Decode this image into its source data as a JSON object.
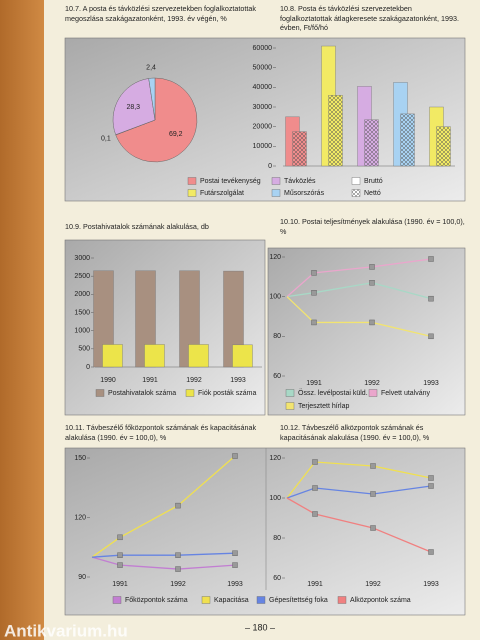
{
  "page_number": "– 180 –",
  "watermark": "Antikvarium.hu",
  "chart_data": [
    {
      "type": "pie",
      "title": "10.7. A posta és távközlési szervezetekben foglalkoztatottak megoszlása szakágazatonként, 1993. év végén, %",
      "categories": [
        "Postai tevékenység",
        "Távközlés",
        "Futárszolgálat",
        "Műsorszórás"
      ],
      "values": [
        69.2,
        28.3,
        0.1,
        2.4
      ],
      "value_labels": [
        "69,2",
        "28,3",
        "0,1",
        "2,4"
      ],
      "colors": [
        "#f08c8c",
        "#d6ace2",
        "#f2ea64",
        "#a8d2f2"
      ]
    },
    {
      "type": "bar",
      "title": "10.8. Posta és távközlési szervezetekben foglalkoztatottak átlagkeresete szakágazatonként, 1993. évben, Ft/fő/hó",
      "categories": [
        null,
        null,
        null,
        null,
        null
      ],
      "category_colors": [
        "#f08c8c",
        "#f2ea64",
        "#d6ace2",
        "#a8d2f2",
        "#f2ea64"
      ],
      "series": [
        {
          "name": "Bruttó",
          "values": [
            25000,
            61000,
            40500,
            42500,
            30000
          ]
        },
        {
          "name": "Nettó",
          "values": [
            17500,
            36000,
            23500,
            26500,
            20000
          ]
        }
      ],
      "ylim": [
        0,
        60000
      ],
      "yticks": [
        0,
        10000,
        20000,
        30000,
        40000,
        50000,
        60000
      ]
    },
    {
      "type": "bar",
      "title": "10.9. Postahivatalok számának alakulása, db",
      "categories": [
        "1990",
        "1991",
        "1992",
        "1993"
      ],
      "series": [
        {
          "name": "Postahivatalok száma",
          "color": "#a89080",
          "values": [
            2650,
            2650,
            2650,
            2640
          ]
        },
        {
          "name": "Fiók posták száma",
          "color": "#ece44a",
          "values": [
            620,
            620,
            620,
            610
          ]
        }
      ],
      "ylim": [
        0,
        3000
      ],
      "yticks": [
        0,
        500,
        1000,
        1500,
        2000,
        2500,
        3000
      ]
    },
    {
      "type": "line",
      "title": "10.10. Postai teljesítmények alakulása (1990. év = 100,0), %",
      "categories": [
        null,
        "1991",
        "1992",
        "1993"
      ],
      "series": [
        {
          "name": "Össz. levélpostai küld.",
          "color": "#a8d8c6",
          "values": [
            100,
            102,
            107,
            99
          ]
        },
        {
          "name": "Felvett utalvány",
          "color": "#eaa6cc",
          "values": [
            100,
            112,
            115,
            119
          ]
        },
        {
          "name": "Terjesztett hírlap",
          "color": "#f2e470",
          "values": [
            100,
            87,
            87,
            80
          ]
        }
      ],
      "ylim": [
        60,
        120
      ],
      "yticks": [
        60,
        80,
        100,
        120
      ]
    },
    {
      "type": "line",
      "title": "10.11. Távbeszélő főközpontok számának és kapacitásának alakulása (1990. év = 100,0), %",
      "categories": [
        null,
        "1991",
        "1992",
        "1993"
      ],
      "series": [
        {
          "color": "#c27ed2",
          "values": [
            100,
            96,
            94,
            96
          ]
        },
        {
          "color": "#f0e050",
          "values": [
            100,
            110,
            126,
            151
          ]
        },
        {
          "color": "#6684e2",
          "values": [
            100,
            101,
            101,
            102
          ]
        }
      ],
      "ylim": [
        90,
        150
      ],
      "yticks": [
        90,
        120,
        150
      ]
    },
    {
      "type": "line",
      "title": "10.12. Távbeszélő alközpontok számának és kapacitásának alakulása (1990. év = 100,0), %",
      "categories": [
        null,
        "1991",
        "1992",
        "1993"
      ],
      "series": [
        {
          "color": "#f0e050",
          "values": [
            100,
            118,
            116,
            110
          ]
        },
        {
          "color": "#6684e2",
          "values": [
            100,
            105,
            102,
            106
          ]
        },
        {
          "color": "#f08080",
          "values": [
            100,
            92,
            85,
            73
          ]
        }
      ],
      "ylim": [
        60,
        120
      ],
      "yticks": [
        60,
        80,
        100,
        120
      ]
    }
  ],
  "shared_legend": [
    {
      "name": "Főközpontok száma",
      "color": "#c27ed2"
    },
    {
      "name": "Kapacitása",
      "color": "#f0e050"
    },
    {
      "name": "Gépesítettség foka",
      "color": "#6684e2"
    },
    {
      "name": "Alközpontok száma",
      "color": "#f08080"
    }
  ]
}
